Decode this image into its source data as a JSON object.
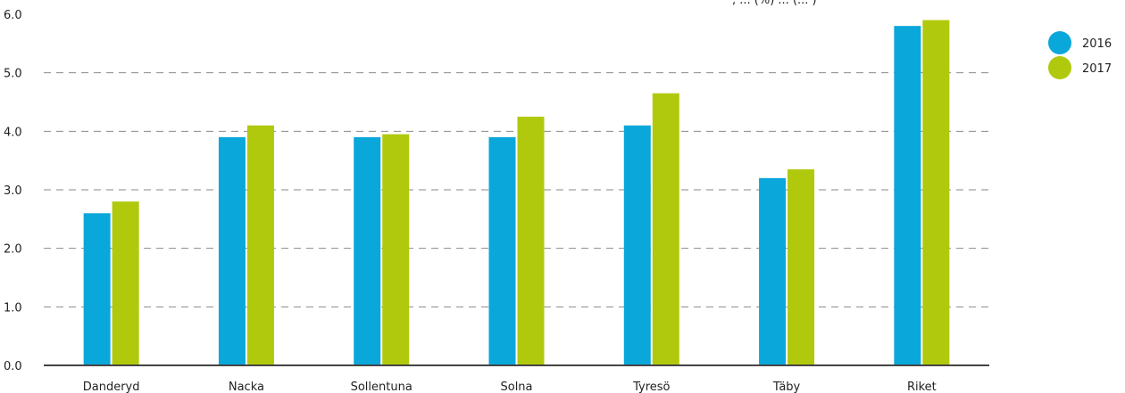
{
  "chart_data": {
    "type": "bar",
    "title_fragment": ", ... (%) ... (... )",
    "categories": [
      "Danderyd",
      "Nacka",
      "Sollentuna",
      "Solna",
      "Tyresö",
      "Täby",
      "Riket"
    ],
    "series": [
      {
        "name": "2016",
        "values": [
          2.6,
          3.9,
          3.9,
          3.9,
          4.1,
          3.2,
          5.8
        ]
      },
      {
        "name": "2017",
        "values": [
          2.8,
          4.1,
          3.95,
          4.25,
          4.65,
          3.35,
          5.9
        ]
      }
    ],
    "yticks": [
      "0.0",
      "1.0",
      "2.0",
      "3.0",
      "4.0",
      "5.0",
      "6.0"
    ],
    "ylim": [
      0,
      6
    ],
    "grid": true,
    "legend_position": "top-right",
    "colors": {
      "2016": "#0aa7db",
      "2017": "#b1c90c",
      "grid": "#8a8a8a",
      "axis": "#444444"
    }
  }
}
